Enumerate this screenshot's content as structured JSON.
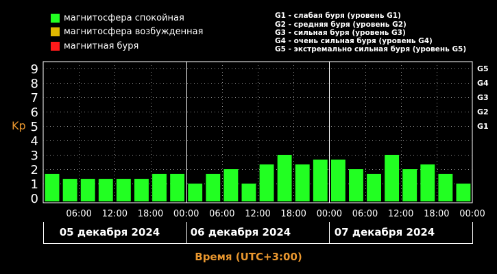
{
  "legend": {
    "quiet": {
      "label": "магнитосфера спокойная",
      "color": "#22ff22"
    },
    "disturbed": {
      "label": "магнитосфера возбужденная",
      "color": "#e0b800"
    },
    "storm": {
      "label": "магнитная буря",
      "color": "#ff1a1a"
    }
  },
  "storm_levels": [
    "G1 - слабая буря (уровень G1)",
    "G2 - средняя буря (уровень G2)",
    "G3 - сильная буря (уровень G3)",
    "G4 - очень сильная буря (уровень G4)",
    "G5 - экстремально сильная буря (уровень G5)"
  ],
  "dates": [
    "05 декабря 2024",
    "06 декабря 2024",
    "07 декабря 2024"
  ],
  "chart_data": {
    "type": "bar",
    "ylabel": "Kp",
    "xlabel": "Время (UTC+3:00)",
    "ylim": [
      0,
      9
    ],
    "yticks": [
      "0",
      "1",
      "2",
      "3",
      "4",
      "5",
      "6",
      "7",
      "8",
      "9"
    ],
    "right_ticks": [
      {
        "value": 5,
        "label": "G1"
      },
      {
        "value": 6,
        "label": "G2"
      },
      {
        "value": 7,
        "label": "G3"
      },
      {
        "value": 8,
        "label": "G4"
      },
      {
        "value": 9,
        "label": "G5"
      }
    ],
    "xtick_labels": [
      "06:00",
      "12:00",
      "18:00",
      "00:00",
      "06:00",
      "12:00",
      "18:00",
      "00:00",
      "06:00",
      "12:00",
      "18:00",
      "00:00"
    ],
    "bar_interval_hours": 3,
    "values": [
      1.67,
      1.33,
      1.33,
      1.33,
      1.33,
      1.33,
      1.67,
      1.67,
      1.0,
      1.67,
      2.0,
      1.0,
      2.33,
      3.0,
      2.33,
      2.67,
      2.67,
      2.0,
      1.67,
      3.0,
      2.0,
      2.33,
      1.67,
      1.0
    ],
    "bar_color": "#22ff22",
    "grid": true
  }
}
